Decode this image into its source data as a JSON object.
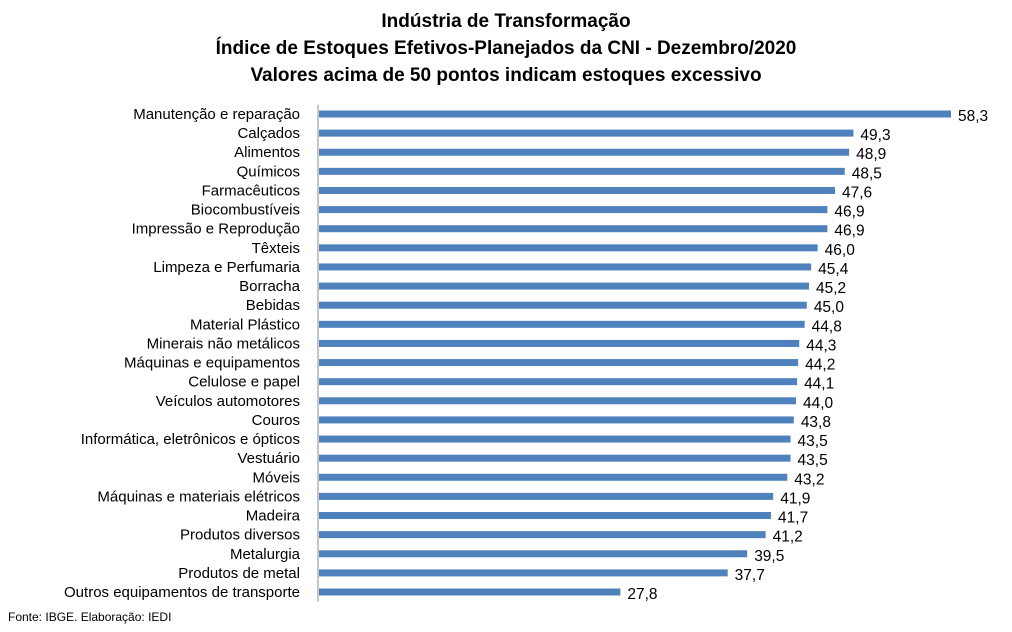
{
  "chart_data": {
    "type": "bar",
    "orientation": "horizontal",
    "title": "Indústria de Transformação",
    "subtitle": [
      "Índice de Estoques Efetivos-Planejados da CNI - Dezembro/2020",
      "Valores acima de 50 pontos indicam estoques excessivo"
    ],
    "xlabel": "",
    "ylabel": "",
    "grid": false,
    "legend": "none",
    "bar_color": "#4F81BD",
    "xlim": [
      0,
      58.3
    ],
    "categories": [
      "Manutenção e reparação",
      "Calçados",
      "Alimentos",
      "Químicos",
      "Farmacêuticos",
      "Biocombustíveis",
      "Impressão e Reprodução",
      "Têxteis",
      "Limpeza e Perfumaria",
      "Borracha",
      "Bebidas",
      "Material Plástico",
      "Minerais não metálicos",
      "Máquinas e equipamentos",
      "Celulose e papel",
      "Veículos automotores",
      "Couros",
      "Informática, eletrônicos e ópticos",
      "Vestuário",
      "Móveis",
      "Máquinas e materiais elétricos",
      "Madeira",
      "Produtos diversos",
      "Metalurgia",
      "Produtos de metal",
      "Outros equipamentos de transporte"
    ],
    "values": [
      58.3,
      49.3,
      48.9,
      48.5,
      47.6,
      46.9,
      46.9,
      46.0,
      45.4,
      45.2,
      45.0,
      44.8,
      44.3,
      44.2,
      44.1,
      44.0,
      43.8,
      43.5,
      43.5,
      43.2,
      41.9,
      41.7,
      41.2,
      39.5,
      37.7,
      27.8
    ],
    "value_labels": [
      "58,3",
      "49,3",
      "48,9",
      "48,5",
      "47,6",
      "46,9",
      "46,9",
      "46,0",
      "45,4",
      "45,2",
      "45,0",
      "44,8",
      "44,3",
      "44,2",
      "44,1",
      "44,0",
      "43,8",
      "43,5",
      "43,5",
      "43,2",
      "41,9",
      "41,7",
      "41,2",
      "39,5",
      "37,7",
      "27,8"
    ]
  },
  "footer": {
    "source": "Fonte: IBGE. Elaboração: IEDI"
  }
}
